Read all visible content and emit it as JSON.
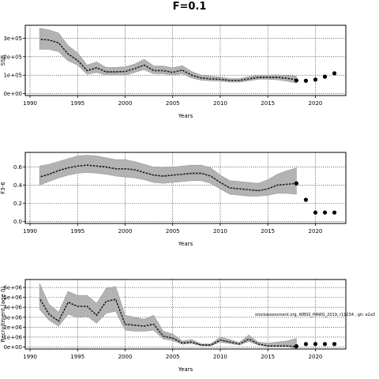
{
  "figure_title": "F=0.1",
  "chart_data": [
    {
      "type": "line",
      "ylabel": "SSB",
      "xlabel": "Years",
      "xlim": [
        1989.5,
        2023.2
      ],
      "ylim": [
        -10000,
        370000
      ],
      "xticks": [
        1990,
        1995,
        2000,
        2005,
        2010,
        2015,
        2020
      ],
      "yticks": [
        0,
        100000,
        200000,
        300000
      ],
      "ytick_labels": [
        "0e+00",
        "1e+05",
        "2e+05",
        "3e+05"
      ],
      "grid": true,
      "estimate": {
        "x": [
          1991,
          1992,
          1993,
          1994,
          1995,
          1996,
          1997,
          1998,
          1999,
          2000,
          2001,
          2002,
          2003,
          2004,
          2005,
          2006,
          2007,
          2008,
          2009,
          2010,
          2011,
          2012,
          2013,
          2014,
          2015,
          2016,
          2017,
          2018
        ],
        "y": [
          295000,
          290000,
          275000,
          215000,
          180000,
          125000,
          140000,
          118000,
          118000,
          120000,
          135000,
          155000,
          125000,
          125000,
          115000,
          128000,
          100000,
          85000,
          80000,
          78000,
          72000,
          72000,
          80000,
          88000,
          88000,
          88000,
          83000,
          75000
        ],
        "lower": [
          240000,
          240000,
          228000,
          178000,
          155000,
          105000,
          115000,
          100000,
          100000,
          100000,
          115000,
          130000,
          108000,
          108000,
          100000,
          108000,
          85000,
          73000,
          70000,
          68000,
          63000,
          63000,
          70000,
          78000,
          78000,
          75000,
          68000,
          58000
        ],
        "upper": [
          355000,
          345000,
          328000,
          260000,
          220000,
          155000,
          172000,
          142000,
          142000,
          146000,
          160000,
          186000,
          150000,
          150000,
          140000,
          152000,
          120000,
          100000,
          94000,
          90000,
          82000,
          82000,
          92000,
          100000,
          100000,
          102000,
          98000,
          95000
        ]
      },
      "projection": {
        "x": [
          2018,
          2019,
          2020,
          2021,
          2022
        ],
        "y": [
          72000,
          70000,
          76000,
          92000,
          110000
        ]
      }
    },
    {
      "type": "line",
      "ylabel": "F3-6",
      "xlabel": "Years",
      "xlim": [
        1989.5,
        2023.2
      ],
      "ylim": [
        -0.02,
        0.76
      ],
      "xticks": [
        1990,
        1995,
        2000,
        2005,
        2010,
        2015,
        2020
      ],
      "yticks": [
        0.0,
        0.2,
        0.4,
        0.6
      ],
      "ytick_labels": [
        "0.0",
        "0.2",
        "0.4",
        "0.6"
      ],
      "grid": true,
      "estimate": {
        "x": [
          1991,
          1992,
          1993,
          1994,
          1995,
          1996,
          1997,
          1998,
          1999,
          2000,
          2001,
          2002,
          2003,
          2004,
          2005,
          2006,
          2007,
          2008,
          2009,
          2010,
          2011,
          2012,
          2013,
          2014,
          2015,
          2016,
          2017,
          2018
        ],
        "y": [
          0.49,
          0.52,
          0.56,
          0.59,
          0.61,
          0.62,
          0.61,
          0.6,
          0.58,
          0.58,
          0.57,
          0.54,
          0.51,
          0.5,
          0.51,
          0.52,
          0.53,
          0.53,
          0.5,
          0.43,
          0.37,
          0.36,
          0.35,
          0.34,
          0.36,
          0.4,
          0.41,
          0.42
        ],
        "lower": [
          0.4,
          0.44,
          0.48,
          0.51,
          0.53,
          0.54,
          0.53,
          0.52,
          0.5,
          0.49,
          0.48,
          0.46,
          0.43,
          0.42,
          0.43,
          0.44,
          0.45,
          0.45,
          0.42,
          0.36,
          0.3,
          0.29,
          0.28,
          0.28,
          0.29,
          0.31,
          0.31,
          0.3
        ],
        "upper": [
          0.61,
          0.63,
          0.66,
          0.69,
          0.72,
          0.73,
          0.72,
          0.7,
          0.68,
          0.68,
          0.66,
          0.63,
          0.6,
          0.59,
          0.6,
          0.61,
          0.62,
          0.62,
          0.59,
          0.51,
          0.45,
          0.44,
          0.43,
          0.42,
          0.46,
          0.52,
          0.56,
          0.59
        ]
      },
      "projection": {
        "x": [
          2018,
          2019,
          2020,
          2021,
          2022
        ],
        "y": [
          0.42,
          0.24,
          0.1,
          0.1,
          0.1
        ]
      }
    },
    {
      "type": "line",
      "ylabel": "Recruitment (age 0)",
      "xlabel": "Years",
      "annotation": "stockassessment.org, WBSS_HAWG_2019, r11234 , git: e2a3",
      "xlim": [
        1989.5,
        2023.2
      ],
      "ylim": [
        -200000,
        6800000
      ],
      "xticks": [
        1990,
        1995,
        2000,
        2005,
        2010,
        2015,
        2020
      ],
      "yticks": [
        0,
        1000000,
        2000000,
        3000000,
        4000000,
        5000000,
        6000000
      ],
      "ytick_labels": [
        "0e+00",
        "1e+06",
        "2e+06",
        "3e+06",
        "4e+06",
        "5e+06",
        "6e+06"
      ],
      "grid": true,
      "estimate": {
        "x": [
          1991,
          1992,
          1993,
          1994,
          1995,
          1996,
          1997,
          1998,
          1999,
          2000,
          2001,
          2002,
          2003,
          2004,
          2005,
          2006,
          2007,
          2008,
          2009,
          2010,
          2011,
          2012,
          2013,
          2014,
          2015,
          2016,
          2017,
          2018
        ],
        "y": [
          4900000,
          3300000,
          2600000,
          4500000,
          4100000,
          4100000,
          3200000,
          4600000,
          4800000,
          2300000,
          2200000,
          2100000,
          2300000,
          1100000,
          900000,
          400000,
          500000,
          200000,
          200000,
          700000,
          500000,
          300000,
          800000,
          300000,
          100000,
          100000,
          100000,
          50000
        ],
        "lower": [
          3800000,
          2700000,
          2100000,
          3300000,
          3000000,
          3100000,
          2400000,
          3400000,
          3600000,
          1700000,
          1600000,
          1600000,
          1700000,
          800000,
          650000,
          280000,
          350000,
          130000,
          130000,
          500000,
          350000,
          200000,
          550000,
          200000,
          60000,
          60000,
          40000,
          -150000
        ],
        "upper": [
          6400000,
          4300000,
          3500000,
          5600000,
          5200000,
          5200000,
          4400000,
          5900000,
          6100000,
          3200000,
          3000000,
          2800000,
          3200000,
          1600000,
          1300000,
          600000,
          750000,
          320000,
          320000,
          1000000,
          750000,
          450000,
          1200000,
          500000,
          400000,
          500000,
          600000,
          850000
        ]
      },
      "projection": {
        "x": [
          2018,
          2019,
          2020,
          2021,
          2022
        ],
        "y": [
          80000,
          300000,
          300000,
          300000,
          300000
        ]
      }
    }
  ]
}
